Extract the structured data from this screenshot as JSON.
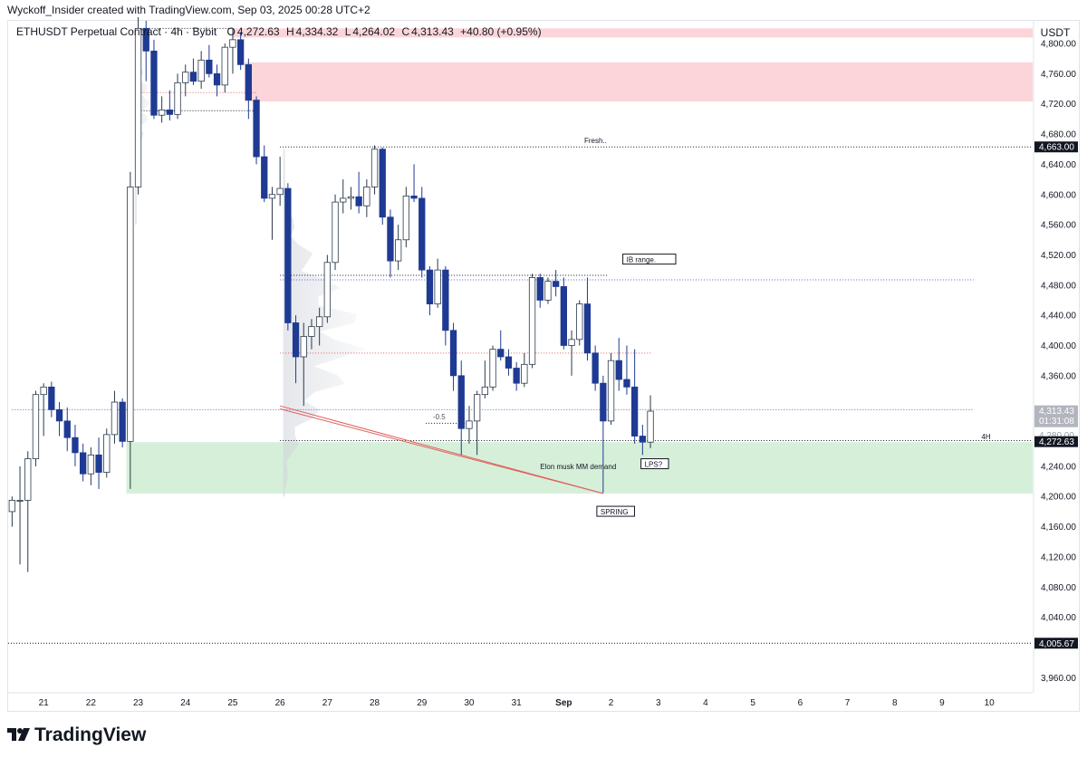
{
  "header": {
    "published": "Wyckoff_Insider created with TradingView.com, Sep 03, 2025 00:28 UTC+2"
  },
  "legend": {
    "symbol": "ETHUSDT Perpetual Contract · 4h · Bybit",
    "open_label": "O",
    "open": "4,272.63",
    "high_label": "H",
    "high": "4,334.32",
    "low_label": "L",
    "low": "4,264.02",
    "close_label": "C",
    "close": "4,313.43",
    "change": "+40.80 (+0.95%)"
  },
  "currency_button": "USDT",
  "footer": {
    "brand": "TradingView"
  },
  "colors": {
    "up_fill": "#ffffff",
    "up_border": "#2a3a4a",
    "down_fill": "#1f3a93",
    "down_border": "#1f3a93",
    "supply_zone": "#fbd5da",
    "demand_zone": "#d6efd9",
    "accent_red": "#e06060"
  },
  "chart_data": {
    "type": "candlestick",
    "timeframe": "4h",
    "ylim": [
      3940,
      4830
    ],
    "y_ticks": [
      {
        "value": 4800,
        "label": "4,800.00"
      },
      {
        "value": 4760,
        "label": "4,760.00"
      },
      {
        "value": 4720,
        "label": "4,720.00"
      },
      {
        "value": 4680,
        "label": "4,680.00"
      },
      {
        "value": 4640,
        "label": "4,640.00"
      },
      {
        "value": 4600,
        "label": "4,600.00"
      },
      {
        "value": 4560,
        "label": "4,560.00"
      },
      {
        "value": 4520,
        "label": "4,520.00"
      },
      {
        "value": 4480,
        "label": "4,480.00"
      },
      {
        "value": 4440,
        "label": "4,440.00"
      },
      {
        "value": 4400,
        "label": "4,400.00"
      },
      {
        "value": 4360,
        "label": "4,360.00"
      },
      {
        "value": 4240,
        "label": "4,240.00"
      },
      {
        "value": 4200,
        "label": "4,200.00"
      },
      {
        "value": 4160,
        "label": "4,160.00"
      },
      {
        "value": 4120,
        "label": "4,120.00"
      },
      {
        "value": 4080,
        "label": "4,080.00"
      },
      {
        "value": 4040,
        "label": "4,040.00"
      },
      {
        "value": 3960,
        "label": "3,960.00"
      }
    ],
    "x_ticks": [
      {
        "index": 0,
        "label": "21"
      },
      {
        "index": 6,
        "label": "22"
      },
      {
        "index": 12,
        "label": "23"
      },
      {
        "index": 18,
        "label": "24"
      },
      {
        "index": 24,
        "label": "25"
      },
      {
        "index": 30,
        "label": "26"
      },
      {
        "index": 36,
        "label": "27"
      },
      {
        "index": 42,
        "label": "28"
      },
      {
        "index": 48,
        "label": "29"
      },
      {
        "index": 54,
        "label": "30"
      },
      {
        "index": 60,
        "label": "31"
      },
      {
        "index": 66,
        "label": "Sep"
      },
      {
        "index": 72,
        "label": "2"
      },
      {
        "index": 78,
        "label": "3"
      },
      {
        "index": 84,
        "label": "4"
      },
      {
        "index": 90,
        "label": "5"
      },
      {
        "index": 96,
        "label": "6"
      },
      {
        "index": 102,
        "label": "7"
      },
      {
        "index": 108,
        "label": "8"
      },
      {
        "index": 114,
        "label": "9"
      },
      {
        "index": 120,
        "label": "10"
      }
    ],
    "first_index": -4.5,
    "last_index": 125.5,
    "candles": [
      {
        "i": -4,
        "o": 4180,
        "h": 4200,
        "l": 4160,
        "c": 4195
      },
      {
        "i": -3,
        "o": 4195,
        "h": 4240,
        "l": 4110,
        "c": 4195
      },
      {
        "i": -2,
        "o": 4195,
        "h": 4260,
        "l": 4100,
        "c": 4250
      },
      {
        "i": -1,
        "o": 4250,
        "h": 4340,
        "l": 4240,
        "c": 4335
      },
      {
        "i": 0,
        "o": 4335,
        "h": 4350,
        "l": 4280,
        "c": 4345
      },
      {
        "i": 1,
        "o": 4345,
        "h": 4352,
        "l": 4305,
        "c": 4315
      },
      {
        "i": 2,
        "o": 4315,
        "h": 4325,
        "l": 4280,
        "c": 4300
      },
      {
        "i": 3,
        "o": 4300,
        "h": 4318,
        "l": 4260,
        "c": 4278
      },
      {
        "i": 4,
        "o": 4278,
        "h": 4295,
        "l": 4240,
        "c": 4258
      },
      {
        "i": 5,
        "o": 4258,
        "h": 4270,
        "l": 4220,
        "c": 4230
      },
      {
        "i": 6,
        "o": 4230,
        "h": 4265,
        "l": 4215,
        "c": 4255
      },
      {
        "i": 7,
        "o": 4255,
        "h": 4278,
        "l": 4210,
        "c": 4232
      },
      {
        "i": 8,
        "o": 4232,
        "h": 4290,
        "l": 4225,
        "c": 4282
      },
      {
        "i": 9,
        "o": 4282,
        "h": 4340,
        "l": 4270,
        "c": 4325
      },
      {
        "i": 10,
        "o": 4325,
        "h": 4330,
        "l": 4265,
        "c": 4273
      },
      {
        "i": 11,
        "o": 4273,
        "h": 4630,
        "l": 4210,
        "c": 4610
      },
      {
        "i": 12,
        "o": 4610,
        "h": 4835,
        "l": 4600,
        "c": 4820
      },
      {
        "i": 13,
        "o": 4820,
        "h": 4830,
        "l": 4750,
        "c": 4790
      },
      {
        "i": 14,
        "o": 4790,
        "h": 4805,
        "l": 4700,
        "c": 4705
      },
      {
        "i": 15,
        "o": 4705,
        "h": 4730,
        "l": 4695,
        "c": 4712
      },
      {
        "i": 16,
        "o": 4712,
        "h": 4738,
        "l": 4698,
        "c": 4706
      },
      {
        "i": 17,
        "o": 4706,
        "h": 4760,
        "l": 4700,
        "c": 4748
      },
      {
        "i": 18,
        "o": 4748,
        "h": 4772,
        "l": 4730,
        "c": 4762
      },
      {
        "i": 19,
        "o": 4762,
        "h": 4780,
        "l": 4745,
        "c": 4750
      },
      {
        "i": 20,
        "o": 4750,
        "h": 4790,
        "l": 4740,
        "c": 4778
      },
      {
        "i": 21,
        "o": 4778,
        "h": 4798,
        "l": 4755,
        "c": 4760
      },
      {
        "i": 22,
        "o": 4760,
        "h": 4772,
        "l": 4730,
        "c": 4745
      },
      {
        "i": 23,
        "o": 4745,
        "h": 4800,
        "l": 4735,
        "c": 4795
      },
      {
        "i": 24,
        "o": 4795,
        "h": 4820,
        "l": 4760,
        "c": 4805
      },
      {
        "i": 25,
        "o": 4805,
        "h": 4815,
        "l": 4765,
        "c": 4772
      },
      {
        "i": 26,
        "o": 4772,
        "h": 4780,
        "l": 4700,
        "c": 4725
      },
      {
        "i": 27,
        "o": 4725,
        "h": 4730,
        "l": 4640,
        "c": 4650
      },
      {
        "i": 28,
        "o": 4650,
        "h": 4665,
        "l": 4590,
        "c": 4595
      },
      {
        "i": 29,
        "o": 4595,
        "h": 4610,
        "l": 4540,
        "c": 4600
      },
      {
        "i": 30,
        "o": 4600,
        "h": 4650,
        "l": 4585,
        "c": 4608
      },
      {
        "i": 31,
        "o": 4608,
        "h": 4615,
        "l": 4420,
        "c": 4430
      },
      {
        "i": 32,
        "o": 4430,
        "h": 4440,
        "l": 4350,
        "c": 4385
      },
      {
        "i": 33,
        "o": 4385,
        "h": 4430,
        "l": 4320,
        "c": 4412
      },
      {
        "i": 34,
        "o": 4412,
        "h": 4435,
        "l": 4395,
        "c": 4425
      },
      {
        "i": 35,
        "o": 4425,
        "h": 4450,
        "l": 4400,
        "c": 4438
      },
      {
        "i": 36,
        "o": 4438,
        "h": 4520,
        "l": 4430,
        "c": 4510
      },
      {
        "i": 37,
        "o": 4510,
        "h": 4600,
        "l": 4500,
        "c": 4590
      },
      {
        "i": 38,
        "o": 4590,
        "h": 4620,
        "l": 4575,
        "c": 4595
      },
      {
        "i": 39,
        "o": 4595,
        "h": 4610,
        "l": 4580,
        "c": 4597
      },
      {
        "i": 40,
        "o": 4597,
        "h": 4630,
        "l": 4575,
        "c": 4585
      },
      {
        "i": 41,
        "o": 4585,
        "h": 4620,
        "l": 4570,
        "c": 4610
      },
      {
        "i": 42,
        "o": 4610,
        "h": 4665,
        "l": 4600,
        "c": 4660
      },
      {
        "i": 43,
        "o": 4660,
        "h": 4662,
        "l": 4560,
        "c": 4570
      },
      {
        "i": 44,
        "o": 4570,
        "h": 4580,
        "l": 4490,
        "c": 4512
      },
      {
        "i": 45,
        "o": 4512,
        "h": 4560,
        "l": 4500,
        "c": 4540
      },
      {
        "i": 46,
        "o": 4540,
        "h": 4610,
        "l": 4530,
        "c": 4598
      },
      {
        "i": 47,
        "o": 4598,
        "h": 4640,
        "l": 4590,
        "c": 4595
      },
      {
        "i": 48,
        "o": 4595,
        "h": 4610,
        "l": 4490,
        "c": 4500
      },
      {
        "i": 49,
        "o": 4500,
        "h": 4505,
        "l": 4440,
        "c": 4455
      },
      {
        "i": 50,
        "o": 4455,
        "h": 4515,
        "l": 4450,
        "c": 4500
      },
      {
        "i": 51,
        "o": 4500,
        "h": 4505,
        "l": 4400,
        "c": 4420
      },
      {
        "i": 52,
        "o": 4420,
        "h": 4430,
        "l": 4340,
        "c": 4360
      },
      {
        "i": 53,
        "o": 4360,
        "h": 4380,
        "l": 4255,
        "c": 4290
      },
      {
        "i": 54,
        "o": 4290,
        "h": 4320,
        "l": 4270,
        "c": 4300
      },
      {
        "i": 55,
        "o": 4300,
        "h": 4340,
        "l": 4255,
        "c": 4335
      },
      {
        "i": 56,
        "o": 4335,
        "h": 4380,
        "l": 4330,
        "c": 4345
      },
      {
        "i": 57,
        "o": 4345,
        "h": 4400,
        "l": 4340,
        "c": 4395
      },
      {
        "i": 58,
        "o": 4395,
        "h": 4420,
        "l": 4380,
        "c": 4385
      },
      {
        "i": 59,
        "o": 4385,
        "h": 4395,
        "l": 4360,
        "c": 4370
      },
      {
        "i": 60,
        "o": 4370,
        "h": 4378,
        "l": 4340,
        "c": 4350
      },
      {
        "i": 61,
        "o": 4350,
        "h": 4390,
        "l": 4345,
        "c": 4375
      },
      {
        "i": 62,
        "o": 4375,
        "h": 4495,
        "l": 4370,
        "c": 4490
      },
      {
        "i": 63,
        "o": 4490,
        "h": 4495,
        "l": 4450,
        "c": 4460
      },
      {
        "i": 64,
        "o": 4460,
        "h": 4490,
        "l": 4455,
        "c": 4485
      },
      {
        "i": 65,
        "o": 4485,
        "h": 4500,
        "l": 4465,
        "c": 4478
      },
      {
        "i": 66,
        "o": 4478,
        "h": 4490,
        "l": 4395,
        "c": 4400
      },
      {
        "i": 67,
        "o": 4400,
        "h": 4420,
        "l": 4360,
        "c": 4408
      },
      {
        "i": 68,
        "o": 4408,
        "h": 4460,
        "l": 4400,
        "c": 4455
      },
      {
        "i": 69,
        "o": 4455,
        "h": 4490,
        "l": 4380,
        "c": 4390
      },
      {
        "i": 70,
        "o": 4390,
        "h": 4400,
        "l": 4340,
        "c": 4350
      },
      {
        "i": 71,
        "o": 4350,
        "h": 4360,
        "l": 4205,
        "c": 4300
      },
      {
        "i": 72,
        "o": 4300,
        "h": 4390,
        "l": 4295,
        "c": 4380
      },
      {
        "i": 73,
        "o": 4380,
        "h": 4410,
        "l": 4340,
        "c": 4355
      },
      {
        "i": 74,
        "o": 4355,
        "h": 4400,
        "l": 4335,
        "c": 4345
      },
      {
        "i": 75,
        "o": 4345,
        "h": 4395,
        "l": 4270,
        "c": 4280
      },
      {
        "i": 76,
        "o": 4280,
        "h": 4295,
        "l": 4255,
        "c": 4272
      },
      {
        "i": 77,
        "o": 4272,
        "h": 4334,
        "l": 4264,
        "c": 4313
      }
    ]
  },
  "zones": {
    "supply_top": {
      "top": 4820,
      "bottom": 4808
    },
    "supply_main": {
      "top": 4775,
      "bottom": 4723
    },
    "demand": {
      "top": 4272,
      "bottom": 4204
    }
  },
  "levels": {
    "fresh_label": "Fresh..",
    "fresh_price": "4,663.00",
    "ib_label": "IB range.",
    "fib_label": "-0.5",
    "demand_label": "Elon musk MM demand",
    "spring_label": "SPRING",
    "lps_label": "LPS?",
    "tf_label": "4H",
    "price_current": "4,313.43",
    "countdown": "01:31:08",
    "price_4h": "4,272.63",
    "price_low": "4,005.67",
    "partial_label": "4,280.00"
  }
}
